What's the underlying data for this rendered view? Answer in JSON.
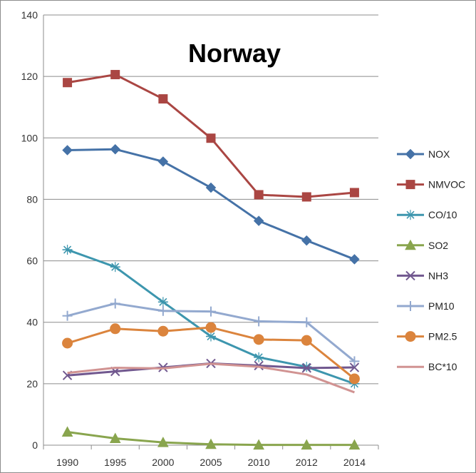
{
  "chart_data": {
    "type": "line",
    "title": "Norway",
    "categories": [
      "1990",
      "1995",
      "2000",
      "2005",
      "2010",
      "2012",
      "2014"
    ],
    "ylim": [
      0,
      140
    ],
    "yticks": [
      0,
      20,
      40,
      60,
      80,
      100,
      120,
      140
    ],
    "grid": "horizontal",
    "legend": "right",
    "series": [
      {
        "name": "NOX",
        "color": "#4572a7",
        "marker": "diamond",
        "values": [
          96,
          96.3,
          92.3,
          83.8,
          73,
          66.6,
          60.5
        ]
      },
      {
        "name": "NMVOC",
        "color": "#aa4643",
        "marker": "square",
        "values": [
          118,
          120.6,
          112.7,
          99.9,
          81.5,
          80.8,
          82.2
        ]
      },
      {
        "name": "CO/10",
        "color": "#3d96ae",
        "marker": "star",
        "values": [
          63.6,
          58,
          46.6,
          35.4,
          28.6,
          25.5,
          20
        ]
      },
      {
        "name": "SO2",
        "color": "#89a54e",
        "marker": "triangle",
        "values": [
          4.3,
          2.2,
          0.9,
          0.3,
          0.1,
          0.1,
          0.1
        ]
      },
      {
        "name": "NH3",
        "color": "#71588f",
        "marker": "x",
        "values": [
          22.7,
          24,
          25.3,
          26.6,
          25.9,
          25.1,
          25.3
        ]
      },
      {
        "name": "PM10",
        "color": "#93a9cf",
        "marker": "plus",
        "values": [
          42.1,
          46.1,
          43.7,
          43.5,
          40.3,
          40,
          27.3
        ]
      },
      {
        "name": "PM2.5",
        "color": "#db843d",
        "marker": "circle",
        "values": [
          33.2,
          37.9,
          37.1,
          38.3,
          34.4,
          34.1,
          21.6
        ]
      },
      {
        "name": "BC*10",
        "color": "#d19392",
        "marker": "none",
        "values": [
          23.5,
          25.2,
          25,
          26.5,
          25.5,
          23,
          17.2
        ]
      }
    ]
  }
}
